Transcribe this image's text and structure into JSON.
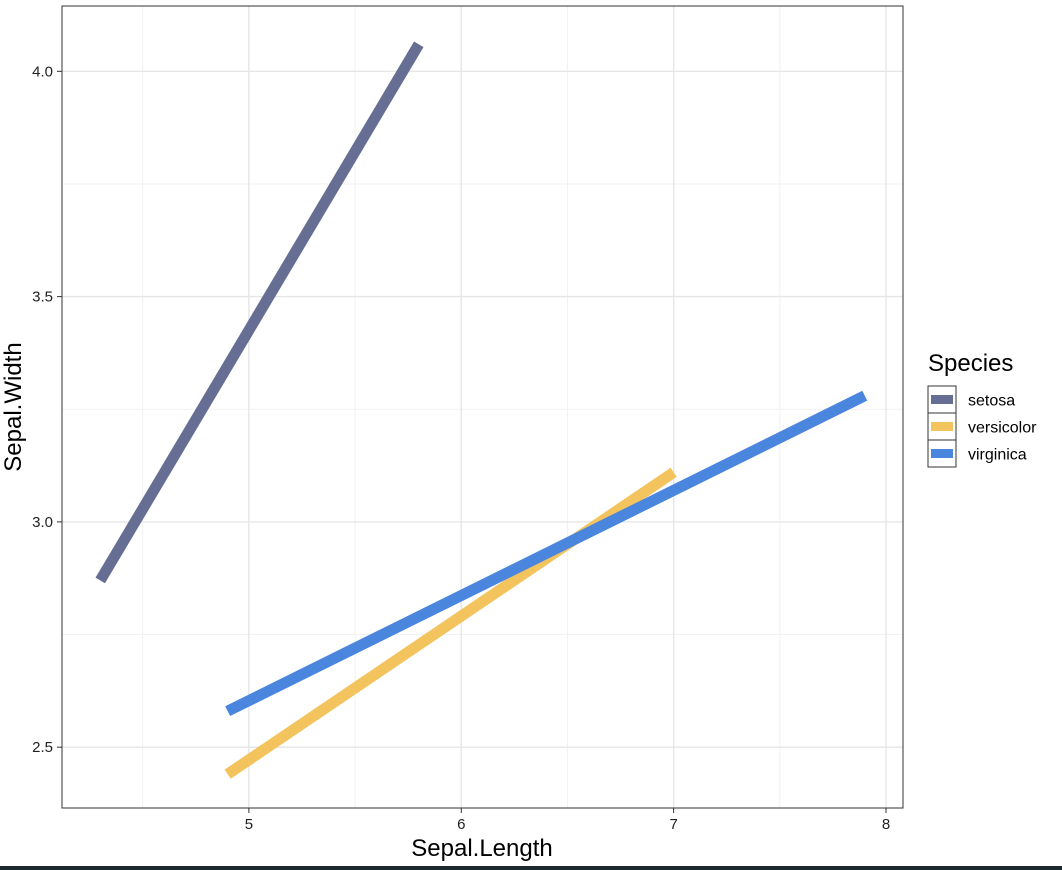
{
  "chart_data": {
    "type": "line",
    "title": "",
    "xlabel": "Sepal.Length",
    "ylabel": "Sepal.Width",
    "xlim": [
      4.12,
      8.08
    ],
    "ylim": [
      2.365,
      4.145
    ],
    "x_ticks": [
      5,
      6,
      7,
      8
    ],
    "x_tick_labels": [
      "5",
      "6",
      "7",
      "8"
    ],
    "y_ticks": [
      2.5,
      3.0,
      3.5,
      4.0
    ],
    "y_tick_labels": [
      "2.5",
      "3.0",
      "3.5",
      "4.0"
    ],
    "grid": true,
    "legend": {
      "title": "Species",
      "placement": "right"
    },
    "series": [
      {
        "name": "setosa",
        "color": "#676e93",
        "x": [
          4.3,
          5.8
        ],
        "y": [
          2.87,
          4.06
        ]
      },
      {
        "name": "versicolor",
        "color": "#f3c45d",
        "x": [
          4.9,
          7.0
        ],
        "y": [
          2.44,
          3.11
        ]
      },
      {
        "name": "virginica",
        "color": "#4a86dd",
        "x": [
          4.9,
          7.9
        ],
        "y": [
          2.58,
          3.28
        ]
      }
    ]
  }
}
